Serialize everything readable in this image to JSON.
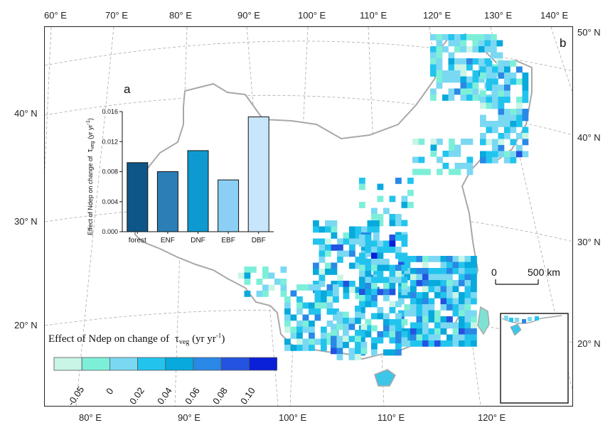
{
  "figure": {
    "panel_a_label": "a",
    "panel_b_label": "b"
  },
  "map": {
    "top_lon_labels": [
      "60° E",
      "70° E",
      "80° E",
      "90° E",
      "100° E",
      "110° E",
      "120° E",
      "130° E",
      "140° E"
    ],
    "bottom_lon_labels": [
      "80° E",
      "90° E",
      "100° E",
      "110° E",
      "120° E"
    ],
    "left_lat_labels": [
      "40° N",
      "30° N",
      "20° N"
    ],
    "right_lat_labels": [
      "50° N",
      "40° N",
      "30° N",
      "20° N"
    ],
    "colors": {
      "frame": "#222222",
      "graticule": "#aaaaaa",
      "border": "#a8a8a8",
      "land_fill": "#ffffff"
    }
  },
  "legend": {
    "title_prefix": "Effect of Ndep on change of",
    "title_symbol": "τ",
    "title_subscript": "veg",
    "title_unit": "(yr yr",
    "title_unit_sup": "-1",
    "title_unit_end": ")",
    "tick_labels": [
      "-0.05",
      "0",
      "0.02",
      "0.04",
      "0.06",
      "0.08",
      "0.10"
    ],
    "bins": [
      "#c8f5e6",
      "#7defd9",
      "#7ad8f2",
      "#22c4ee",
      "#08a9dc",
      "#2a88e6",
      "#2353e0",
      "#0a1fd8"
    ]
  },
  "scale_bar": {
    "label_start": "0",
    "label_end": "500 km"
  },
  "chart_data": {
    "type": "bar",
    "title": "a",
    "categories": [
      "forest",
      "ENF",
      "DNF",
      "EBF",
      "DBF"
    ],
    "values": [
      0.0092,
      0.008,
      0.0108,
      0.0069,
      0.0153
    ],
    "ylabel": "Effect of Ndep on change of τveg (yr yr-1)",
    "ylabel_prefix": "Effect of Ndep on change of",
    "ylabel_symbol": "τ",
    "ylabel_subscript": "veg",
    "ylabel_unit": "(yr yr",
    "ylabel_unit_sup": "-1",
    "ylabel_unit_end": ")",
    "ylim": [
      0,
      0.016
    ],
    "yticks": [
      "0.000",
      "0.004",
      "0.008",
      "0.012",
      "0.016"
    ],
    "colors": [
      "#0e5687",
      "#2b7fb6",
      "#0e9ad0",
      "#8ccff4",
      "#c7e6fb"
    ],
    "grid": false
  }
}
